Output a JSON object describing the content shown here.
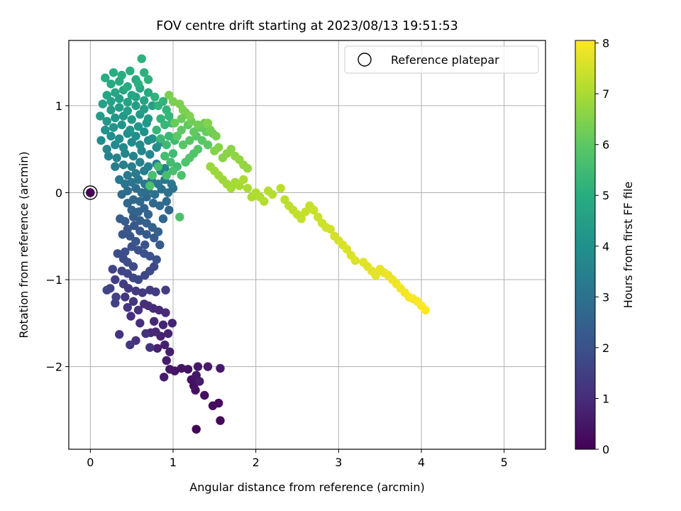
{
  "chart_data": {
    "type": "scatter",
    "title": "FOV centre drift starting at 2023/08/13 19:51:53",
    "xlabel": "Angular distance from reference (arcmin)",
    "ylabel": "Rotation from reference (arcmin)",
    "xlim": [
      -0.26,
      5.5
    ],
    "ylim": [
      -2.95,
      1.75
    ],
    "xticks": [
      0,
      1,
      2,
      3,
      4,
      5
    ],
    "yticks": [
      -2,
      -1,
      0,
      1
    ],
    "xtick_labels": [
      "0",
      "1",
      "2",
      "3",
      "4",
      "5"
    ],
    "ytick_labels": [
      "−2",
      "−1",
      "0",
      "1"
    ],
    "grid": true,
    "legend": {
      "placement": "top-right",
      "entries": [
        "Reference platepar"
      ]
    },
    "colorbar": {
      "label": "Hours from first FF file",
      "colormap": "viridis",
      "range": [
        0,
        8.05
      ],
      "ticks": [
        0,
        1,
        2,
        3,
        4,
        5,
        6,
        7,
        8
      ],
      "tick_labels": [
        "0",
        "1",
        "2",
        "3",
        "4",
        "5",
        "6",
        "7",
        "8"
      ]
    },
    "reference_point": {
      "x": 0.0,
      "y": 0.0,
      "color_value": 0.0
    },
    "points": [
      [
        0.0,
        0.0,
        0.02
      ],
      [
        1.28,
        -2.72,
        0.1
      ],
      [
        1.57,
        -2.62,
        0.15
      ],
      [
        1.55,
        -2.42,
        0.2
      ],
      [
        1.48,
        -2.45,
        0.25
      ],
      [
        1.38,
        -2.33,
        0.3
      ],
      [
        1.25,
        -2.22,
        0.33
      ],
      [
        1.27,
        -2.27,
        0.35
      ],
      [
        1.22,
        -2.15,
        0.38
      ],
      [
        1.18,
        -2.03,
        0.4
      ],
      [
        1.1,
        -2.02,
        0.42
      ],
      [
        1.02,
        -2.05,
        0.45
      ],
      [
        0.96,
        -2.03,
        0.48
      ],
      [
        1.28,
        -2.1,
        0.5
      ],
      [
        1.3,
        -2.0,
        0.52
      ],
      [
        1.42,
        -2.0,
        0.55
      ],
      [
        1.57,
        -2.02,
        0.58
      ],
      [
        1.32,
        -2.17,
        0.6
      ],
      [
        0.89,
        -2.12,
        0.62
      ],
      [
        0.92,
        -1.93,
        0.65
      ],
      [
        0.96,
        -1.83,
        0.67
      ],
      [
        0.9,
        -1.75,
        0.7
      ],
      [
        0.81,
        -1.79,
        0.72
      ],
      [
        0.85,
        -1.65,
        0.75
      ],
      [
        0.94,
        -1.62,
        0.78
      ],
      [
        0.99,
        -1.5,
        0.8
      ],
      [
        0.88,
        -1.52,
        0.82
      ],
      [
        0.79,
        -1.6,
        0.85
      ],
      [
        0.73,
        -1.61,
        0.88
      ],
      [
        0.77,
        -1.48,
        0.9
      ],
      [
        0.83,
        -1.35,
        0.92
      ],
      [
        0.91,
        -1.38,
        0.95
      ],
      [
        0.76,
        -1.33,
        0.97
      ],
      [
        0.7,
        -1.3,
        1.0
      ],
      [
        0.65,
        -1.28,
        1.02
      ],
      [
        0.58,
        -1.35,
        1.05
      ],
      [
        0.49,
        -1.42,
        1.07
      ],
      [
        0.6,
        -1.5,
        1.1
      ],
      [
        0.67,
        -1.62,
        1.12
      ],
      [
        0.72,
        -1.78,
        1.15
      ],
      [
        0.55,
        -1.7,
        1.17
      ],
      [
        0.48,
        -1.75,
        1.2
      ],
      [
        0.35,
        -1.63,
        1.22
      ],
      [
        0.45,
        -1.32,
        1.25
      ],
      [
        0.52,
        -1.25,
        1.27
      ],
      [
        0.42,
        -1.2,
        1.3
      ],
      [
        0.46,
        -1.1,
        1.32
      ],
      [
        0.55,
        -1.13,
        1.35
      ],
      [
        0.63,
        -1.15,
        1.37
      ],
      [
        0.72,
        -1.12,
        1.4
      ],
      [
        0.79,
        -1.14,
        1.42
      ],
      [
        0.91,
        -1.12,
        1.45
      ],
      [
        0.4,
        -1.05,
        1.47
      ],
      [
        0.3,
        -1.0,
        1.5
      ],
      [
        0.24,
        -1.1,
        1.52
      ],
      [
        0.31,
        -1.2,
        1.55
      ],
      [
        0.3,
        -1.27,
        1.57
      ],
      [
        0.2,
        -1.12,
        1.6
      ],
      [
        0.27,
        -0.88,
        1.62
      ],
      [
        0.38,
        -0.9,
        1.65
      ],
      [
        0.45,
        -0.93,
        1.67
      ],
      [
        0.52,
        -0.98,
        1.7
      ],
      [
        0.58,
        -1.0,
        1.72
      ],
      [
        0.66,
        -0.95,
        1.75
      ],
      [
        0.72,
        -0.9,
        1.77
      ],
      [
        0.77,
        -0.85,
        1.8
      ],
      [
        0.52,
        -0.85,
        1.82
      ],
      [
        0.45,
        -0.8,
        1.85
      ],
      [
        0.4,
        -0.76,
        1.87
      ],
      [
        0.33,
        -0.7,
        1.9
      ],
      [
        0.42,
        -0.68,
        1.92
      ],
      [
        0.5,
        -0.62,
        1.95
      ],
      [
        0.58,
        -0.66,
        1.97
      ],
      [
        0.65,
        -0.7,
        2.0
      ],
      [
        0.72,
        -0.73,
        2.02
      ],
      [
        0.8,
        -0.77,
        2.05
      ],
      [
        0.66,
        -0.6,
        2.07
      ],
      [
        0.55,
        -0.56,
        2.1
      ],
      [
        0.48,
        -0.5,
        2.12
      ],
      [
        0.39,
        -0.48,
        2.15
      ],
      [
        0.45,
        -0.42,
        2.17
      ],
      [
        0.53,
        -0.38,
        2.2
      ],
      [
        0.6,
        -0.44,
        2.22
      ],
      [
        0.68,
        -0.48,
        2.25
      ],
      [
        0.77,
        -0.52,
        2.27
      ],
      [
        0.84,
        -0.6,
        2.3
      ],
      [
        0.36,
        -0.3,
        2.32
      ],
      [
        0.42,
        -0.33,
        2.35
      ],
      [
        0.52,
        -0.28,
        2.37
      ],
      [
        0.6,
        -0.32,
        2.4
      ],
      [
        0.68,
        -0.35,
        2.42
      ],
      [
        0.75,
        -0.4,
        2.45
      ],
      [
        0.82,
        -0.45,
        2.47
      ],
      [
        0.5,
        -0.2,
        2.5
      ],
      [
        0.58,
        -0.22,
        2.52
      ],
      [
        0.65,
        -0.18,
        2.55
      ],
      [
        0.7,
        -0.25,
        2.57
      ],
      [
        0.88,
        -0.3,
        2.6
      ],
      [
        0.95,
        -0.2,
        2.62
      ],
      [
        0.45,
        -0.12,
        2.65
      ],
      [
        0.52,
        -0.08,
        2.67
      ],
      [
        0.6,
        -0.1,
        2.7
      ],
      [
        0.68,
        -0.05,
        2.72
      ],
      [
        0.76,
        -0.12,
        2.75
      ],
      [
        0.84,
        -0.15,
        2.77
      ],
      [
        0.92,
        -0.1,
        2.8
      ],
      [
        0.38,
        -0.02,
        2.82
      ],
      [
        0.45,
        0.02,
        2.85
      ],
      [
        0.55,
        0.05,
        2.87
      ],
      [
        0.62,
        0.0,
        2.9
      ],
      [
        0.7,
        0.03,
        2.92
      ],
      [
        0.78,
        -0.02,
        2.95
      ],
      [
        0.86,
        0.04,
        2.97
      ],
      [
        0.94,
        0.0,
        3.0
      ],
      [
        1.0,
        0.05,
        3.02
      ],
      [
        0.42,
        0.1,
        3.05
      ],
      [
        0.5,
        0.12,
        3.07
      ],
      [
        0.58,
        0.15,
        3.1
      ],
      [
        0.66,
        0.1,
        3.12
      ],
      [
        0.74,
        0.14,
        3.15
      ],
      [
        0.82,
        0.1,
        3.17
      ],
      [
        0.9,
        0.15,
        3.2
      ],
      [
        0.98,
        0.1,
        3.22
      ],
      [
        0.35,
        0.15,
        3.25
      ],
      [
        0.45,
        0.2,
        3.27
      ],
      [
        0.55,
        0.22,
        3.3
      ],
      [
        0.65,
        0.25,
        3.32
      ],
      [
        0.75,
        0.2,
        3.35
      ],
      [
        0.85,
        0.25,
        3.37
      ],
      [
        0.3,
        0.3,
        3.4
      ],
      [
        0.4,
        0.32,
        3.42
      ],
      [
        0.5,
        0.3,
        3.45
      ],
      [
        0.6,
        0.35,
        3.47
      ],
      [
        0.7,
        0.3,
        3.5
      ],
      [
        0.8,
        0.33,
        3.52
      ],
      [
        0.9,
        0.28,
        3.55
      ],
      [
        0.22,
        0.42,
        3.57
      ],
      [
        0.32,
        0.4,
        3.6
      ],
      [
        0.42,
        0.45,
        3.62
      ],
      [
        0.52,
        0.42,
        3.65
      ],
      [
        0.62,
        0.48,
        3.67
      ],
      [
        0.72,
        0.44,
        3.7
      ],
      [
        0.2,
        0.5,
        3.72
      ],
      [
        0.3,
        0.55,
        3.75
      ],
      [
        0.4,
        0.52,
        3.77
      ],
      [
        0.5,
        0.58,
        3.8
      ],
      [
        0.6,
        0.55,
        3.82
      ],
      [
        0.7,
        0.6,
        3.85
      ],
      [
        0.8,
        0.52,
        3.87
      ],
      [
        0.13,
        0.6,
        3.9
      ],
      [
        0.25,
        0.65,
        3.92
      ],
      [
        0.35,
        0.62,
        3.95
      ],
      [
        0.45,
        0.68,
        3.97
      ],
      [
        0.55,
        0.65,
        4.0
      ],
      [
        0.65,
        0.7,
        4.02
      ],
      [
        0.75,
        0.62,
        4.05
      ],
      [
        0.85,
        0.58,
        4.07
      ],
      [
        0.18,
        0.72,
        4.1
      ],
      [
        0.28,
        0.75,
        4.12
      ],
      [
        0.38,
        0.78,
        4.15
      ],
      [
        0.48,
        0.72,
        4.17
      ],
      [
        0.58,
        0.76,
        4.2
      ],
      [
        0.68,
        0.8,
        4.22
      ],
      [
        0.2,
        0.82,
        4.25
      ],
      [
        0.3,
        0.86,
        4.27
      ],
      [
        0.4,
        0.88,
        4.3
      ],
      [
        0.5,
        0.84,
        4.32
      ],
      [
        0.6,
        0.9,
        4.35
      ],
      [
        0.7,
        0.85,
        4.37
      ],
      [
        0.12,
        0.88,
        4.4
      ],
      [
        0.25,
        0.95,
        4.42
      ],
      [
        0.35,
        0.98,
        4.45
      ],
      [
        0.45,
        0.94,
        4.47
      ],
      [
        0.55,
        1.0,
        4.5
      ],
      [
        0.65,
        0.96,
        4.52
      ],
      [
        0.75,
        1.0,
        4.55
      ],
      [
        0.15,
        1.02,
        4.57
      ],
      [
        0.25,
        1.05,
        4.6
      ],
      [
        0.35,
        1.08,
        4.62
      ],
      [
        0.45,
        1.04,
        4.65
      ],
      [
        0.55,
        1.1,
        4.67
      ],
      [
        0.65,
        1.06,
        4.7
      ],
      [
        0.2,
        1.12,
        4.72
      ],
      [
        0.3,
        1.15,
        4.75
      ],
      [
        0.4,
        1.18,
        4.77
      ],
      [
        0.5,
        1.12,
        4.8
      ],
      [
        0.6,
        1.2,
        4.82
      ],
      [
        0.7,
        1.15,
        4.85
      ],
      [
        0.25,
        1.25,
        4.87
      ],
      [
        0.35,
        1.28,
        4.9
      ],
      [
        0.45,
        1.22,
        4.92
      ],
      [
        0.55,
        1.3,
        4.95
      ],
      [
        0.18,
        1.32,
        4.97
      ],
      [
        0.28,
        1.38,
        5.0
      ],
      [
        0.38,
        1.35,
        5.02
      ],
      [
        0.48,
        1.4,
        5.05
      ],
      [
        0.58,
        1.25,
        5.07
      ],
      [
        0.65,
        1.38,
        5.1
      ],
      [
        0.62,
        1.54,
        5.12
      ],
      [
        0.7,
        1.3,
        5.15
      ],
      [
        0.78,
        1.1,
        5.17
      ],
      [
        0.82,
        1.0,
        5.2
      ],
      [
        0.88,
        1.05,
        5.22
      ],
      [
        0.92,
        0.95,
        5.25
      ],
      [
        0.85,
        0.85,
        5.27
      ],
      [
        0.95,
        0.88,
        5.3
      ],
      [
        0.8,
        0.72,
        5.32
      ],
      [
        0.9,
        0.78,
        5.35
      ],
      [
        0.98,
        0.8,
        5.37
      ],
      [
        0.85,
        0.62,
        5.4
      ],
      [
        0.95,
        0.65,
        5.42
      ],
      [
        0.92,
        0.55,
        5.45
      ],
      [
        1.02,
        0.6,
        5.47
      ],
      [
        1.0,
        0.45,
        5.5
      ],
      [
        1.05,
        0.3,
        5.52
      ],
      [
        0.97,
        0.35,
        5.55
      ],
      [
        0.9,
        0.42,
        5.57
      ],
      [
        0.82,
        0.3,
        5.6
      ],
      [
        0.92,
        0.2,
        5.62
      ],
      [
        1.0,
        0.25,
        5.65
      ],
      [
        0.75,
        0.2,
        5.67
      ],
      [
        1.08,
        -0.28,
        5.7
      ],
      [
        0.72,
        0.08,
        5.72
      ],
      [
        1.1,
        0.2,
        5.75
      ],
      [
        1.15,
        0.35,
        5.77
      ],
      [
        1.2,
        0.4,
        5.8
      ],
      [
        1.25,
        0.45,
        5.82
      ],
      [
        1.3,
        0.5,
        5.85
      ],
      [
        1.12,
        0.55,
        5.87
      ],
      [
        1.2,
        0.6,
        5.9
      ],
      [
        1.28,
        0.65,
        5.92
      ],
      [
        1.35,
        0.6,
        5.95
      ],
      [
        1.42,
        0.55,
        5.97
      ],
      [
        1.05,
        0.65,
        6.0
      ],
      [
        1.1,
        0.72,
        6.02
      ],
      [
        1.18,
        0.78,
        6.05
      ],
      [
        1.25,
        0.7,
        6.07
      ],
      [
        1.33,
        0.75,
        6.1
      ],
      [
        1.4,
        0.7,
        6.12
      ],
      [
        1.48,
        0.68,
        6.15
      ],
      [
        1.02,
        0.8,
        6.17
      ],
      [
        1.1,
        0.85,
        6.2
      ],
      [
        1.15,
        0.92,
        6.22
      ],
      [
        1.22,
        0.82,
        6.25
      ],
      [
        1.3,
        0.78,
        6.27
      ],
      [
        1.38,
        0.8,
        6.3
      ],
      [
        1.45,
        0.72,
        6.32
      ],
      [
        1.52,
        0.65,
        6.35
      ],
      [
        0.95,
        1.12,
        6.37
      ],
      [
        1.0,
        1.05,
        6.4
      ],
      [
        1.08,
        1.02,
        6.42
      ],
      [
        1.12,
        0.95,
        6.45
      ],
      [
        1.2,
        0.88,
        6.47
      ],
      [
        1.42,
        0.8,
        6.5
      ],
      [
        1.5,
        0.48,
        6.52
      ],
      [
        1.55,
        0.52,
        6.55
      ],
      [
        1.6,
        0.4,
        6.57
      ],
      [
        1.65,
        0.45,
        6.6
      ],
      [
        1.7,
        0.5,
        6.62
      ],
      [
        1.75,
        0.42,
        6.65
      ],
      [
        1.8,
        0.38,
        6.7
      ],
      [
        1.85,
        0.32,
        6.72
      ],
      [
        1.9,
        0.28,
        6.75
      ],
      [
        1.45,
        0.3,
        6.8
      ],
      [
        1.5,
        0.25,
        6.82
      ],
      [
        1.55,
        0.2,
        6.85
      ],
      [
        1.6,
        0.15,
        6.87
      ],
      [
        1.65,
        0.1,
        6.9
      ],
      [
        1.7,
        0.05,
        6.92
      ],
      [
        1.75,
        0.12,
        6.95
      ],
      [
        1.8,
        0.08,
        6.97
      ],
      [
        1.85,
        0.15,
        7.0
      ],
      [
        1.9,
        0.05,
        7.02
      ],
      [
        1.95,
        -0.05,
        7.05
      ],
      [
        2.0,
        0.0,
        7.07
      ],
      [
        2.05,
        -0.05,
        7.1
      ],
      [
        2.1,
        -0.1,
        7.12
      ],
      [
        2.15,
        0.02,
        7.15
      ],
      [
        2.2,
        -0.02,
        7.17
      ],
      [
        2.3,
        0.05,
        7.2
      ],
      [
        2.35,
        -0.08,
        7.22
      ],
      [
        2.4,
        -0.15,
        7.25
      ],
      [
        2.45,
        -0.2,
        7.27
      ],
      [
        2.5,
        -0.25,
        7.3
      ],
      [
        2.55,
        -0.3,
        7.32
      ],
      [
        2.6,
        -0.22,
        7.35
      ],
      [
        2.65,
        -0.15,
        7.37
      ],
      [
        2.7,
        -0.2,
        7.4
      ],
      [
        2.75,
        -0.28,
        7.42
      ],
      [
        2.8,
        -0.35,
        7.45
      ],
      [
        2.85,
        -0.4,
        7.47
      ],
      [
        2.9,
        -0.42,
        7.5
      ],
      [
        2.95,
        -0.5,
        7.52
      ],
      [
        3.0,
        -0.55,
        7.55
      ],
      [
        3.05,
        -0.6,
        7.57
      ],
      [
        3.1,
        -0.65,
        7.6
      ],
      [
        3.15,
        -0.72,
        7.62
      ],
      [
        3.2,
        -0.78,
        7.65
      ],
      [
        3.3,
        -0.8,
        7.67
      ],
      [
        3.35,
        -0.85,
        7.7
      ],
      [
        3.4,
        -0.9,
        7.72
      ],
      [
        3.45,
        -0.95,
        7.75
      ],
      [
        3.5,
        -0.88,
        7.77
      ],
      [
        3.55,
        -0.92,
        7.8
      ],
      [
        3.6,
        -0.95,
        7.82
      ],
      [
        3.65,
        -1.0,
        7.85
      ],
      [
        3.7,
        -1.05,
        7.87
      ],
      [
        3.75,
        -1.1,
        7.9
      ],
      [
        3.8,
        -1.15,
        7.92
      ],
      [
        3.85,
        -1.2,
        7.95
      ],
      [
        3.9,
        -1.22,
        7.97
      ],
      [
        3.95,
        -1.25,
        8.0
      ],
      [
        4.0,
        -1.3,
        8.02
      ],
      [
        4.05,
        -1.35,
        8.05
      ]
    ]
  }
}
